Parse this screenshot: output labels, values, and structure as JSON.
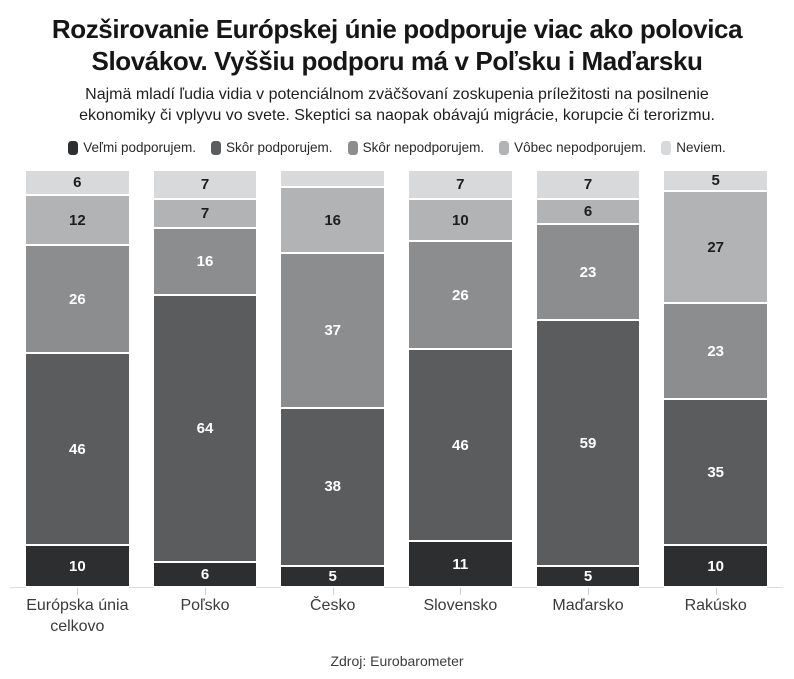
{
  "header": {
    "title_lines": [
      "Rozširovanie Európskej únie podporuje viac ako polovica",
      "Slovákov. Vyššiu podporu má v Poľsku i Maďarsku"
    ],
    "subtitle_lines": [
      "Najmä mladí ľudia vidia v potenciálnom zväčšovaní zoskupenia príležitosti na posilnenie",
      "ekonomiky či vplyvu vo svete. Skeptici sa naopak obávajú migrácie, korupcie či terorizmu."
    ]
  },
  "chart_data": {
    "type": "bar",
    "stacked": true,
    "orientation": "vertical",
    "unit": "percent",
    "ylim": [
      0,
      100
    ],
    "grid": false,
    "legend_position": "top",
    "categories": [
      "Európska únia celkovo",
      "Poľsko",
      "Česko",
      "Slovensko",
      "Maďarsko",
      "Rakúsko"
    ],
    "series": [
      {
        "name": "Veľmi podporujem.",
        "color": "#2d2e30",
        "label_color": "#ffffff",
        "values": [
          10,
          6,
          5,
          11,
          5,
          10
        ]
      },
      {
        "name": "Skôr podporujem.",
        "color": "#5a5c5e",
        "label_color": "#ffffff",
        "values": [
          46,
          64,
          38,
          46,
          59,
          35
        ]
      },
      {
        "name": "Skôr nepodporujem.",
        "color": "#8b8d8f",
        "label_color": "#ffffff",
        "values": [
          26,
          16,
          37,
          26,
          23,
          23
        ]
      },
      {
        "name": "Vôbec nepodporujem.",
        "color": "#b1b3b5",
        "label_color": "#1c1d1f",
        "values": [
          12,
          7,
          16,
          10,
          6,
          27
        ]
      },
      {
        "name": "Neviem.",
        "color": "#d8d9da",
        "label_color": "#1c1d1f",
        "values": [
          6,
          7,
          4,
          7,
          7,
          5
        ]
      }
    ],
    "hidden_value_labels": [
      {
        "series_index": 4,
        "category_index": 2
      }
    ]
  },
  "footer": {
    "source": "Zdroj: Eurobarometer"
  }
}
